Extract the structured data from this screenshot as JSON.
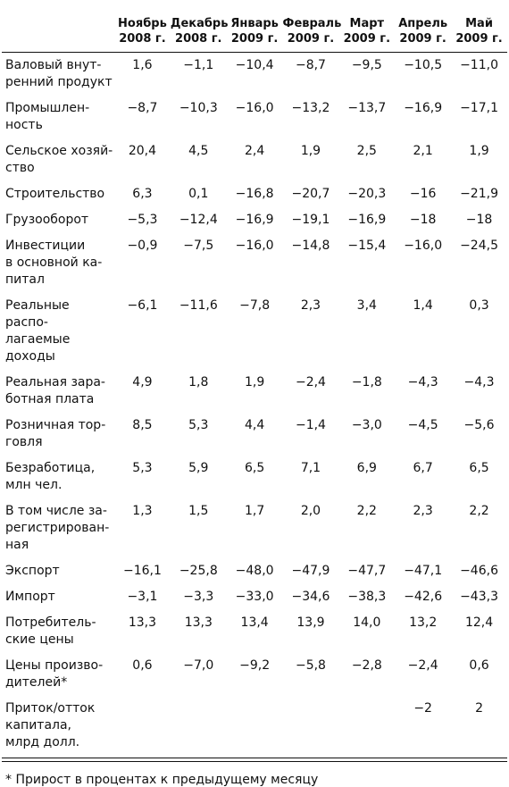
{
  "table": {
    "columns": [
      "Ноябрь\n2008 г.",
      "Декабрь\n2008 г.",
      "Январь\n2009 г.",
      "Февраль\n2009 г.",
      "Март\n2009 г.",
      "Апрель\n2009 г.",
      "Май\n2009 г."
    ],
    "rows": [
      {
        "label": "Валовый внут-\nренний продукт",
        "cells": [
          "1,6",
          "−1,1",
          "−10,4",
          "−8,7",
          "−9,5",
          "−10,5",
          "−11,0"
        ]
      },
      {
        "label": "Промышлен-\nность",
        "cells": [
          "−8,7",
          "−10,3",
          "−16,0",
          "−13,2",
          "−13,7",
          "−16,9",
          "−17,1"
        ]
      },
      {
        "label": "Сельское хозяй-\nство",
        "cells": [
          "20,4",
          "4,5",
          "2,4",
          "1,9",
          "2,5",
          "2,1",
          "1,9"
        ]
      },
      {
        "label": "Строительство",
        "cells": [
          "6,3",
          "0,1",
          "−16,8",
          "−20,7",
          "−20,3",
          "−16",
          "−21,9"
        ]
      },
      {
        "label": "Грузооборот",
        "cells": [
          "−5,3",
          "−12,4",
          "−16,9",
          "−19,1",
          "−16,9",
          "−18",
          "−18"
        ]
      },
      {
        "label": "Инвестиции\nв основной ка-\nпитал",
        "cells": [
          "−0,9",
          "−7,5",
          "−16,0",
          "−14,8",
          "−15,4",
          "−16,0",
          "−24,5"
        ]
      },
      {
        "label": "Реальные распо-\nлагаемые доходы",
        "cells": [
          "−6,1",
          "−11,6",
          "−7,8",
          "2,3",
          "3,4",
          "1,4",
          "0,3"
        ]
      },
      {
        "label": "Реальная зара-\nботная плата",
        "cells": [
          "4,9",
          "1,8",
          "1,9",
          "−2,4",
          "−1,8",
          "−4,3",
          "−4,3"
        ]
      },
      {
        "label": "Розничная тор-\nговля",
        "cells": [
          "8,5",
          "5,3",
          "4,4",
          "−1,4",
          "−3,0",
          "−4,5",
          "−5,6"
        ]
      },
      {
        "label": "Безработица,\nмлн чел.",
        "cells": [
          "5,3",
          "5,9",
          "6,5",
          "7,1",
          "6,9",
          "6,7",
          "6,5"
        ]
      },
      {
        "label": "В том числе за-\nрегистрирован-\nная",
        "cells": [
          "1,3",
          "1,5",
          "1,7",
          "2,0",
          "2,2",
          "2,3",
          "2,2"
        ]
      },
      {
        "label": "Экспорт",
        "cells": [
          "−16,1",
          "−25,8",
          "−48,0",
          "−47,9",
          "−47,7",
          "−47,1",
          "−46,6"
        ]
      },
      {
        "label": "Импорт",
        "cells": [
          "−3,1",
          "−3,3",
          "−33,0",
          "−34,6",
          "−38,3",
          "−42,6",
          "−43,3"
        ]
      },
      {
        "label": "Потребитель-\nские цены",
        "cells": [
          "13,3",
          "13,3",
          "13,4",
          "13,9",
          "14,0",
          "13,2",
          "12,4"
        ]
      },
      {
        "label": "Цены произво-\nдителей*",
        "cells": [
          "0,6",
          "−7,0",
          "−9,2",
          "−5,8",
          "−2,8",
          "−2,4",
          "0,6"
        ]
      },
      {
        "label": "Приток/отток\nкапитала,\nмлрд долл.",
        "cells": [
          null,
          null,
          null,
          null,
          null,
          "−2",
          "2"
        ]
      }
    ],
    "footnote": "* Прирост в процентах к предыдущему месяцу"
  }
}
